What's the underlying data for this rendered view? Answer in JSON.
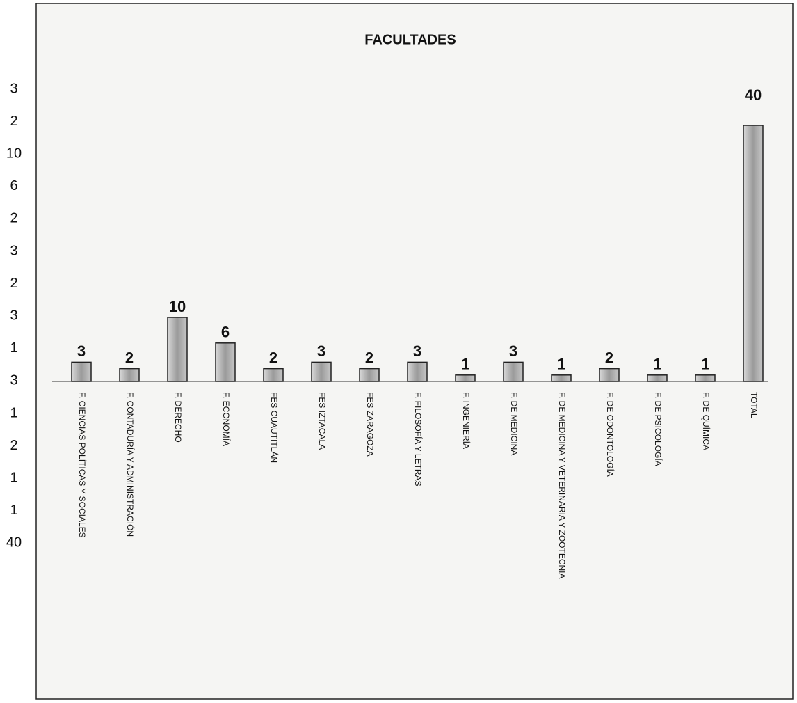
{
  "chart_data": {
    "type": "bar",
    "title": "FACULTADES",
    "categories": [
      "F. CIENCIAS POLÍTICAS Y SOCIALES",
      "F. CONTADURÍA Y ADMINISTRACIÓN",
      "F. DERECHO",
      "F. ECONOMÍA",
      "FES CUAUTITLÁN",
      "FES IZTACALA",
      "FES ZARAGOZA",
      "F. FILOSOFÍA Y LETRAS",
      "F. INGENIERÍA",
      "F. DE MEDICINA",
      "F. DE MEDICINA Y VETERINARIA Y ZOOTECNIA",
      "F. DE ODONTOLOGÍA",
      "F. DE PSICOLOGÍA",
      "F. DE QUÍMICA",
      "TOTAL"
    ],
    "values": [
      3,
      2,
      10,
      6,
      2,
      3,
      2,
      3,
      1,
      3,
      1,
      2,
      1,
      1,
      40
    ],
    "color": "#b8b8b8"
  }
}
